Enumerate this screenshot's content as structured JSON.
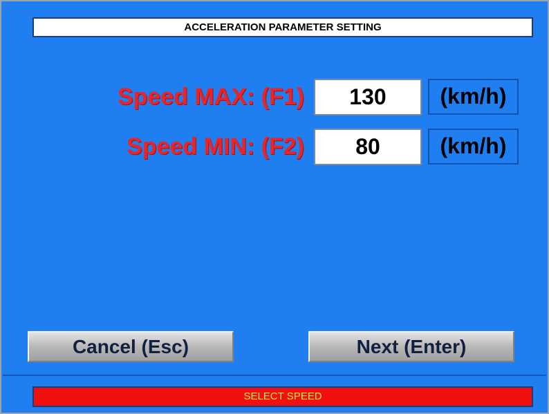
{
  "header": {
    "title": "ACCELERATION PARAMETER SETTING"
  },
  "fields": [
    {
      "label": "Speed MAX: (F1)",
      "value": 130,
      "unit": "(km/h)"
    },
    {
      "label": "Speed MIN: (F2)",
      "value": 80,
      "unit": "(km/h)"
    }
  ],
  "buttons": [
    "Cancel (Esc)",
    "Next (Enter)"
  ],
  "status": "SELECT SPEED"
}
